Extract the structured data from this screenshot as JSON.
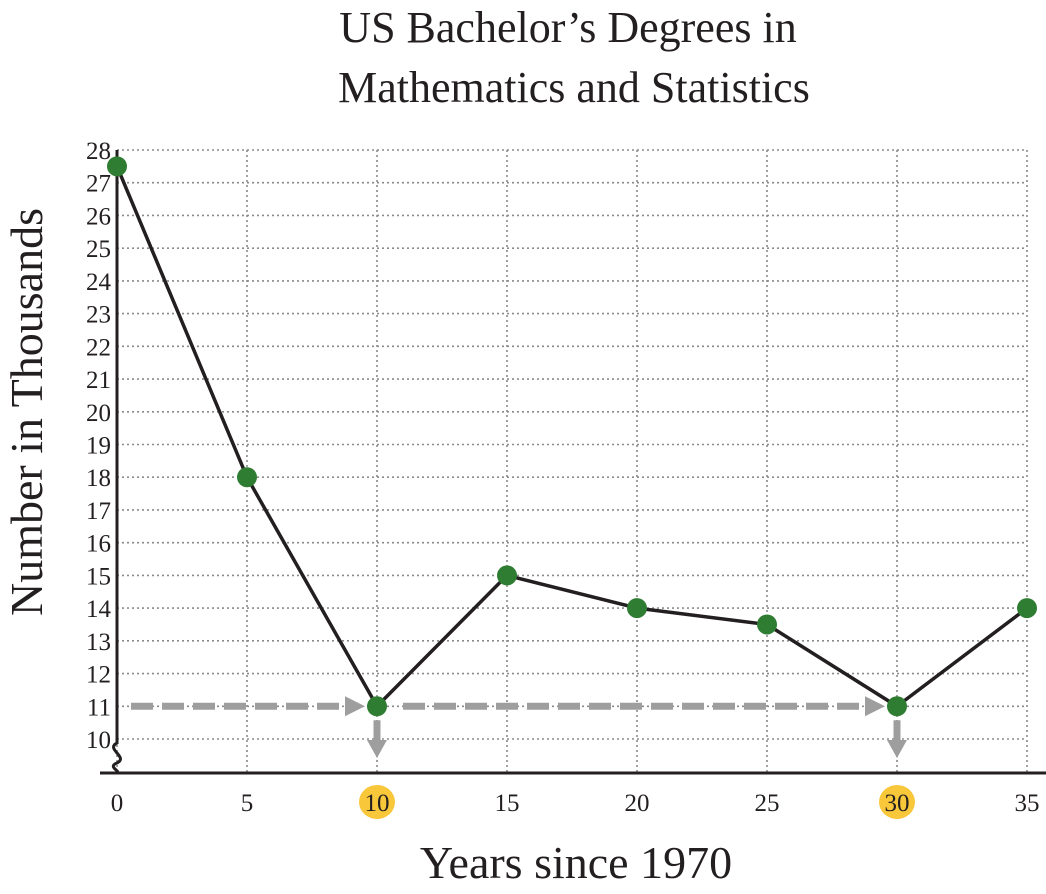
{
  "chart_data": {
    "type": "line",
    "title": [
      "US Bachelor’s Degrees in",
      "Mathematics and Statistics"
    ],
    "xlabel": "Years since 1970",
    "ylabel": "Number in Thousands",
    "x": [
      0,
      5,
      10,
      15,
      20,
      25,
      30,
      35
    ],
    "series": [
      {
        "values": [
          27.5,
          18,
          11,
          15,
          14,
          13.5,
          11,
          14
        ]
      }
    ],
    "xlim": [
      0,
      35
    ],
    "ylim": [
      10,
      28
    ],
    "axis_break": "y",
    "x_ticks": [
      "0",
      "5",
      "10",
      "15",
      "20",
      "25",
      "30",
      "35"
    ],
    "y_ticks": [
      "10",
      "11",
      "12",
      "13",
      "14",
      "15",
      "16",
      "17",
      "18",
      "19",
      "20",
      "21",
      "22",
      "23",
      "24",
      "25",
      "26",
      "27",
      "28"
    ],
    "grid": true,
    "highlighted_x_ticks": [
      "10",
      "30"
    ],
    "guide": {
      "y": 11,
      "x_points": [
        10,
        30
      ]
    },
    "colors": {
      "line": "#231f20",
      "marker": "#2e7d32",
      "guide": "#9e9e9e",
      "highlight": "#f9c73a"
    }
  }
}
